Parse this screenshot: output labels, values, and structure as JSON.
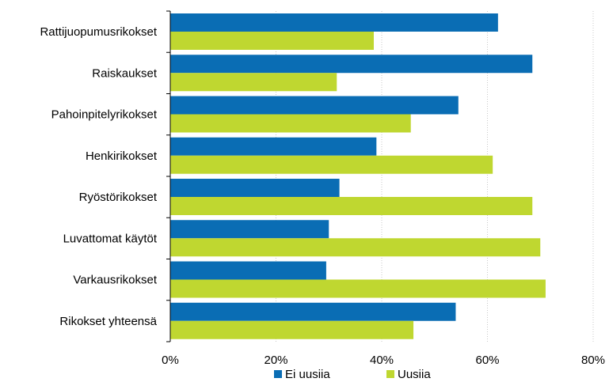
{
  "chart_data": {
    "type": "bar",
    "orientation": "horizontal",
    "categories": [
      "Rattijuopumusrikokset",
      "Raiskaukset",
      "Pahoinpitelyrikokset",
      "Henkirikokset",
      "Ryöstörikokset",
      "Luvattomat käytöt",
      "Varkausrikokset",
      "Rikokset yhteensä"
    ],
    "series": [
      {
        "name": "Ei uusiia",
        "color": "#0a6db4",
        "values": [
          62,
          68.5,
          54.5,
          39,
          32,
          30,
          29.5,
          54
        ]
      },
      {
        "name": "Uusiia",
        "color": "#bfd730",
        "values": [
          38.5,
          31.5,
          45.5,
          61,
          68.5,
          70,
          71,
          46
        ]
      }
    ],
    "xlim": [
      0,
      80
    ],
    "x_ticks": [
      0,
      20,
      40,
      60,
      80
    ],
    "x_tick_labels": [
      "0%",
      "20%",
      "40%",
      "60%",
      "80%"
    ],
    "title": "",
    "xlabel": "",
    "ylabel": "",
    "grid": "vertical",
    "legend_position": "bottom"
  }
}
